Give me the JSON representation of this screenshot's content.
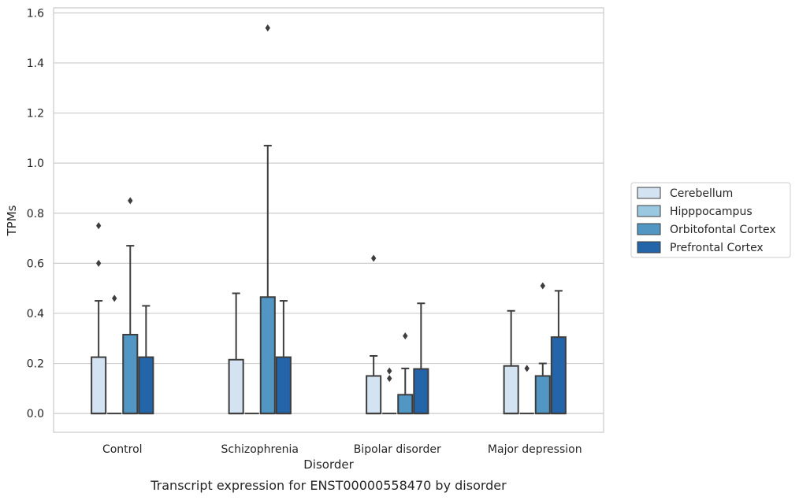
{
  "chart_data": {
    "type": "box",
    "title": "",
    "caption": "Transcript expression for ENST00000558470 by disorder",
    "xlabel": "Disorder",
    "ylabel": "TPMs",
    "ylim": [
      -0.075,
      1.62
    ],
    "yticks": [
      0.0,
      0.2,
      0.4,
      0.6,
      0.8,
      1.0,
      1.2,
      1.4,
      1.6
    ],
    "ytick_labels": [
      "0.0",
      "0.2",
      "0.4",
      "0.6",
      "0.8",
      "1.0",
      "1.2",
      "1.4",
      "1.6"
    ],
    "grid": "horizontal",
    "legend_position": "right-center",
    "categories": [
      "Control",
      "Schizophrenia",
      "Bipolar disorder",
      "Major depression"
    ],
    "series": [
      {
        "name": "Cerebellum",
        "color": "#d4e3f2",
        "boxes": [
          {
            "whisker_low": 0,
            "q1": 0,
            "median": 0,
            "q3": 0.225,
            "whisker_high": 0.45,
            "outliers": [
              0.6,
              0.75
            ]
          },
          {
            "whisker_low": 0,
            "q1": 0,
            "median": 0,
            "q3": 0.215,
            "whisker_high": 0.48,
            "outliers": []
          },
          {
            "whisker_low": 0,
            "q1": 0,
            "median": 0,
            "q3": 0.15,
            "whisker_high": 0.23,
            "outliers": [
              0.62
            ]
          },
          {
            "whisker_low": 0,
            "q1": 0,
            "median": 0,
            "q3": 0.19,
            "whisker_high": 0.41,
            "outliers": []
          }
        ]
      },
      {
        "name": "Hipppocampus",
        "color": "#9ac8e0",
        "boxes": [
          {
            "whisker_low": 0,
            "q1": 0,
            "median": 0,
            "q3": 0,
            "whisker_high": 0,
            "outliers": [
              0.46
            ]
          },
          {
            "whisker_low": 0,
            "q1": 0,
            "median": 0,
            "q3": 0,
            "whisker_high": 0,
            "outliers": []
          },
          {
            "whisker_low": 0,
            "q1": 0,
            "median": 0,
            "q3": 0,
            "whisker_high": 0,
            "outliers": [
              0.14,
              0.17
            ]
          },
          {
            "whisker_low": 0,
            "q1": 0,
            "median": 0,
            "q3": 0,
            "whisker_high": 0,
            "outliers": [
              0.18
            ]
          }
        ]
      },
      {
        "name": "Orbitofontal Cortex",
        "color": "#5296c4",
        "boxes": [
          {
            "whisker_low": 0,
            "q1": 0,
            "median": 0,
            "q3": 0.315,
            "whisker_high": 0.67,
            "outliers": [
              0.85
            ]
          },
          {
            "whisker_low": 0,
            "q1": 0,
            "median": 0,
            "q3": 0.465,
            "whisker_high": 1.07,
            "outliers": [
              1.54
            ]
          },
          {
            "whisker_low": 0,
            "q1": 0,
            "median": 0,
            "q3": 0.075,
            "whisker_high": 0.18,
            "outliers": [
              0.31
            ]
          },
          {
            "whisker_low": 0,
            "q1": 0,
            "median": 0,
            "q3": 0.15,
            "whisker_high": 0.2,
            "outliers": [
              0.51
            ]
          }
        ]
      },
      {
        "name": "Prefrontal Cortex",
        "color": "#2465a9",
        "boxes": [
          {
            "whisker_low": 0,
            "q1": 0,
            "median": 0,
            "q3": 0.225,
            "whisker_high": 0.43,
            "outliers": []
          },
          {
            "whisker_low": 0,
            "q1": 0,
            "median": 0,
            "q3": 0.225,
            "whisker_high": 0.45,
            "outliers": []
          },
          {
            "whisker_low": 0,
            "q1": 0,
            "median": 0,
            "q3": 0.178,
            "whisker_high": 0.44,
            "outliers": []
          },
          {
            "whisker_low": 0,
            "q1": 0,
            "median": 0,
            "q3": 0.305,
            "whisker_high": 0.49,
            "outliers": []
          }
        ]
      }
    ],
    "colors": {
      "edge": "#3d3d3d",
      "grid": "#cccccc",
      "frame": "#cccccc",
      "text": "#262626"
    }
  }
}
